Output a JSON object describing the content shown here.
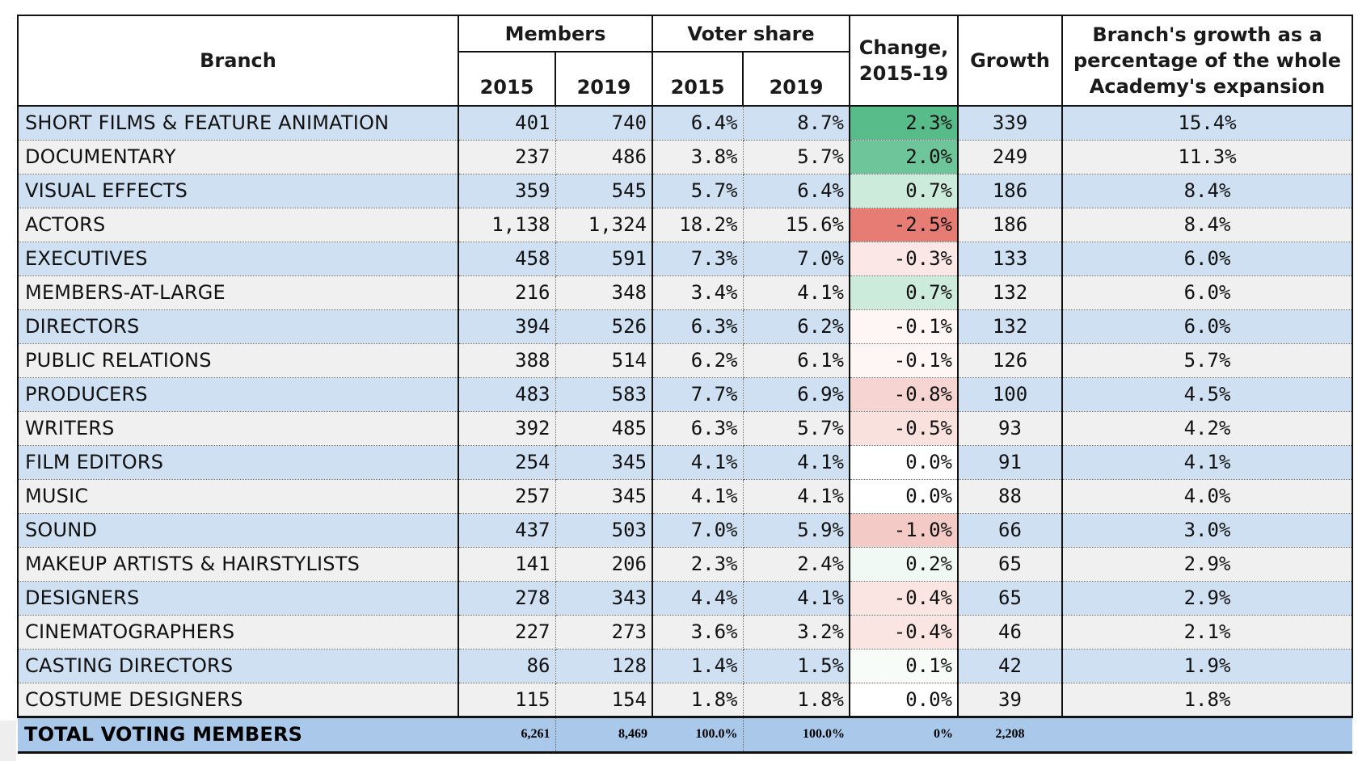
{
  "header": {
    "branch": "Branch",
    "members": "Members",
    "voter_share": "Voter share",
    "change": "Change, 2015-19",
    "growth": "Growth",
    "pct": "Branch's growth as a percentage of the whole Academy's expansion",
    "y1": "2015",
    "y2": "2019"
  },
  "rows": [
    {
      "branch": "SHORT FILMS & FEATURE ANIMATION",
      "m2015": "401",
      "m2019": "740",
      "v2015": "6.4%",
      "v2019": "8.7%",
      "change": "2.3%",
      "growth": "339",
      "pct": "15.4%",
      "change_color": "#57bb8a"
    },
    {
      "branch": "DOCUMENTARY",
      "m2015": "237",
      "m2019": "486",
      "v2015": "3.8%",
      "v2019": "5.7%",
      "change": "2.0%",
      "growth": "249",
      "pct": "11.3%",
      "change_color": "#6ec59a"
    },
    {
      "branch": "VISUAL EFFECTS",
      "m2015": "359",
      "m2019": "545",
      "v2015": "5.7%",
      "v2019": "6.4%",
      "change": "0.7%",
      "growth": "186",
      "pct": "8.4%",
      "change_color": "#cdebda"
    },
    {
      "branch": "ACTORS",
      "m2015": "1,138",
      "m2019": "1,324",
      "v2015": "18.2%",
      "v2019": "15.6%",
      "change": "-2.5%",
      "growth": "186",
      "pct": "8.4%",
      "change_color": "#e67c73"
    },
    {
      "branch": "EXECUTIVES",
      "m2015": "458",
      "m2019": "591",
      "v2015": "7.3%",
      "v2019": "7.0%",
      "change": "-0.3%",
      "growth": "133",
      "pct": "6.0%",
      "change_color": "#fbe8e6"
    },
    {
      "branch": "MEMBERS-AT-LARGE",
      "m2015": "216",
      "m2019": "348",
      "v2015": "3.4%",
      "v2019": "4.1%",
      "change": "0.7%",
      "growth": "132",
      "pct": "6.0%",
      "change_color": "#cdebda"
    },
    {
      "branch": "DIRECTORS",
      "m2015": "394",
      "m2019": "526",
      "v2015": "6.3%",
      "v2019": "6.2%",
      "change": "-0.1%",
      "growth": "132",
      "pct": "6.0%",
      "change_color": "#fdf6f5"
    },
    {
      "branch": "PUBLIC RELATIONS",
      "m2015": "388",
      "m2019": "514",
      "v2015": "6.2%",
      "v2019": "6.1%",
      "change": "-0.1%",
      "growth": "126",
      "pct": "5.7%",
      "change_color": "#fdf6f5"
    },
    {
      "branch": "PRODUCERS",
      "m2015": "483",
      "m2019": "583",
      "v2015": "7.7%",
      "v2019": "6.9%",
      "change": "-0.8%",
      "growth": "100",
      "pct": "4.5%",
      "change_color": "#f6d4d1"
    },
    {
      "branch": "WRITERS",
      "m2015": "392",
      "m2019": "485",
      "v2015": "6.3%",
      "v2019": "5.7%",
      "change": "-0.5%",
      "growth": "93",
      "pct": "4.2%",
      "change_color": "#f9e1de"
    },
    {
      "branch": "FILM EDITORS",
      "m2015": "254",
      "m2019": "345",
      "v2015": "4.1%",
      "v2019": "4.1%",
      "change": "0.0%",
      "growth": "91",
      "pct": "4.1%",
      "change_color": "#ffffff"
    },
    {
      "branch": "MUSIC",
      "m2015": "257",
      "m2019": "345",
      "v2015": "4.1%",
      "v2019": "4.1%",
      "change": "0.0%",
      "growth": "88",
      "pct": "4.0%",
      "change_color": "#ffffff"
    },
    {
      "branch": "SOUND",
      "m2015": "437",
      "m2019": "503",
      "v2015": "7.0%",
      "v2019": "5.9%",
      "change": "-1.0%",
      "growth": "66",
      "pct": "3.0%",
      "change_color": "#f4cac6"
    },
    {
      "branch": "MAKEUP ARTISTS & HAIRSTYLISTS",
      "m2015": "141",
      "m2019": "206",
      "v2015": "2.3%",
      "v2019": "2.4%",
      "change": "0.2%",
      "growth": "65",
      "pct": "2.9%",
      "change_color": "#f1f9f4"
    },
    {
      "branch": "DESIGNERS",
      "m2015": "278",
      "m2019": "343",
      "v2015": "4.4%",
      "v2019": "4.1%",
      "change": "-0.4%",
      "growth": "65",
      "pct": "2.9%",
      "change_color": "#fbe5e3"
    },
    {
      "branch": "CINEMATOGRAPHERS",
      "m2015": "227",
      "m2019": "273",
      "v2015": "3.6%",
      "v2019": "3.2%",
      "change": "-0.4%",
      "growth": "46",
      "pct": "2.1%",
      "change_color": "#fbe5e3"
    },
    {
      "branch": "CASTING DIRECTORS",
      "m2015": "86",
      "m2019": "128",
      "v2015": "1.4%",
      "v2019": "1.5%",
      "change": "0.1%",
      "growth": "42",
      "pct": "1.9%",
      "change_color": "#f7fcf9"
    },
    {
      "branch": "COSTUME DESIGNERS",
      "m2015": "115",
      "m2019": "154",
      "v2015": "1.8%",
      "v2019": "1.8%",
      "change": "0.0%",
      "growth": "39",
      "pct": "1.8%",
      "change_color": "#ffffff"
    }
  ],
  "total": {
    "branch": "TOTAL VOTING MEMBERS",
    "m2015": "6,261",
    "m2019": "8,469",
    "v2015": "100.0%",
    "v2019": "100.0%",
    "change": "0%",
    "growth": "2,208",
    "pct": ""
  }
}
